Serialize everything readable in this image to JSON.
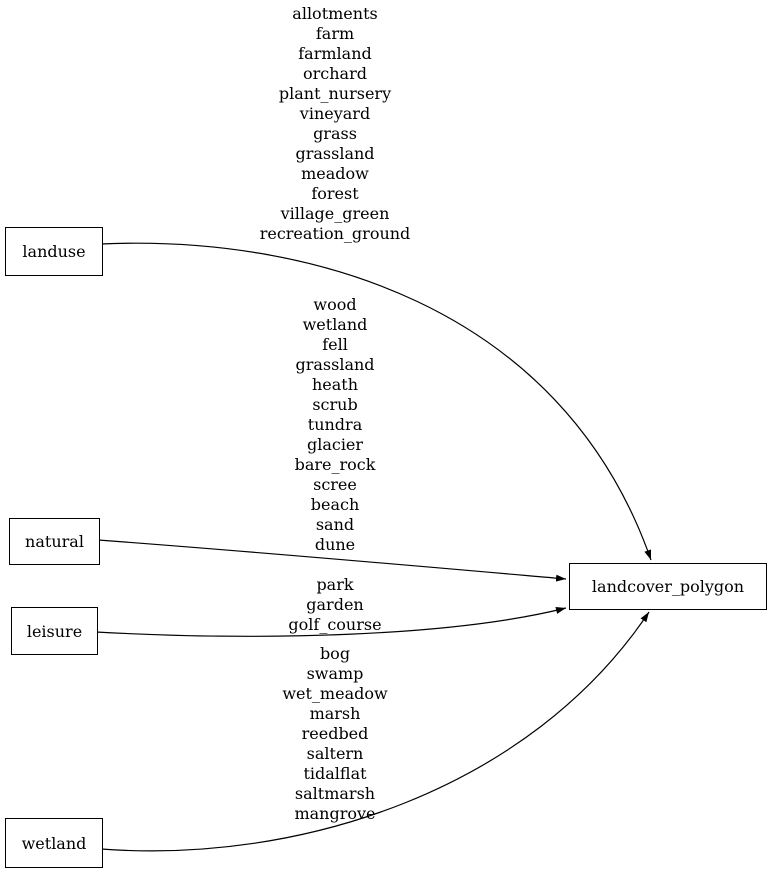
{
  "diagram": {
    "type": "graphviz-digraph",
    "background": "#ffffff",
    "colors": {
      "edge": "#000000",
      "node_border": "#000000",
      "node_fill": "#ffffff",
      "text": "#000000"
    },
    "nodes": {
      "landuse": {
        "label": "landuse"
      },
      "natural": {
        "label": "natural"
      },
      "leisure": {
        "label": "leisure"
      },
      "wetland": {
        "label": "wetland"
      },
      "landcover_polygon": {
        "label": "landcover_polygon"
      }
    },
    "edges": [
      {
        "from": "landuse",
        "to": "landcover_polygon",
        "values": [
          "allotments",
          "farm",
          "farmland",
          "orchard",
          "plant_nursery",
          "vineyard",
          "grass",
          "grassland",
          "meadow",
          "forest",
          "village_green",
          "recreation_ground"
        ]
      },
      {
        "from": "natural",
        "to": "landcover_polygon",
        "values": [
          "wood",
          "wetland",
          "fell",
          "grassland",
          "heath",
          "scrub",
          "tundra",
          "glacier",
          "bare_rock",
          "scree",
          "beach",
          "sand",
          "dune"
        ]
      },
      {
        "from": "leisure",
        "to": "landcover_polygon",
        "values": [
          "park",
          "garden",
          "golf_course"
        ]
      },
      {
        "from": "wetland",
        "to": "landcover_polygon",
        "values": [
          "bog",
          "swamp",
          "wet_meadow",
          "marsh",
          "reedbed",
          "saltern",
          "tidalflat",
          "saltmarsh",
          "mangrove"
        ]
      }
    ]
  }
}
